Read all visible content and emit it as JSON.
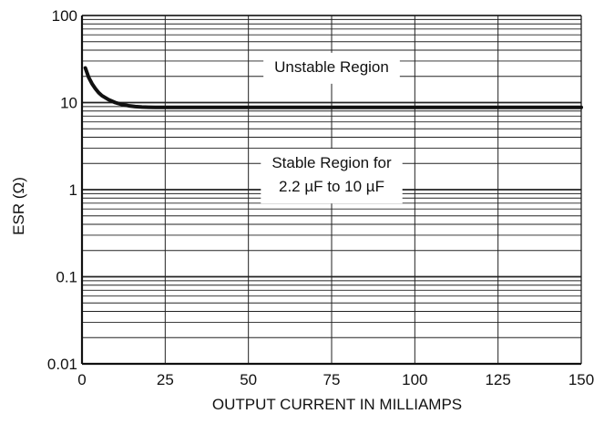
{
  "chart_data": {
    "type": "line",
    "xlabel": "OUTPUT CURRENT IN MILLIAMPS",
    "ylabel": "ESR (Ω)",
    "xlim": [
      0,
      150
    ],
    "ylim": [
      0.01,
      100
    ],
    "y_scale": "log",
    "grid": true,
    "x_ticks": [
      0,
      25,
      50,
      75,
      100,
      125,
      150
    ],
    "x_tick_labels": [
      "0",
      "25",
      "50",
      "75",
      "100",
      "125",
      "150"
    ],
    "y_ticks": [
      0.01,
      0.1,
      1,
      10,
      100
    ],
    "y_tick_labels": [
      "0.01",
      "0.1",
      "1",
      "10",
      "100"
    ],
    "series": [
      {
        "x": [
          1,
          2,
          3,
          4,
          5,
          6,
          8,
          10,
          12,
          14,
          16,
          18,
          20,
          22,
          25,
          50,
          75,
          100,
          125,
          150
        ],
        "y": [
          25,
          19.5,
          16.5,
          14.5,
          13,
          12,
          10.8,
          10,
          9.5,
          9.2,
          9.0,
          8.9,
          8.85,
          8.8,
          8.8,
          8.8,
          8.8,
          8.8,
          8.8,
          8.8
        ]
      }
    ],
    "annotations": [
      {
        "text": "Unstable Region",
        "x": 75,
        "y": 26
      },
      {
        "lines": [
          "Stable Region for",
          "2.2 µF to 10 µF"
        ],
        "x": 75,
        "y": 1.5
      }
    ],
    "colors": {
      "curve": "#111111",
      "grid": "#222222",
      "background": "#ffffff"
    }
  }
}
